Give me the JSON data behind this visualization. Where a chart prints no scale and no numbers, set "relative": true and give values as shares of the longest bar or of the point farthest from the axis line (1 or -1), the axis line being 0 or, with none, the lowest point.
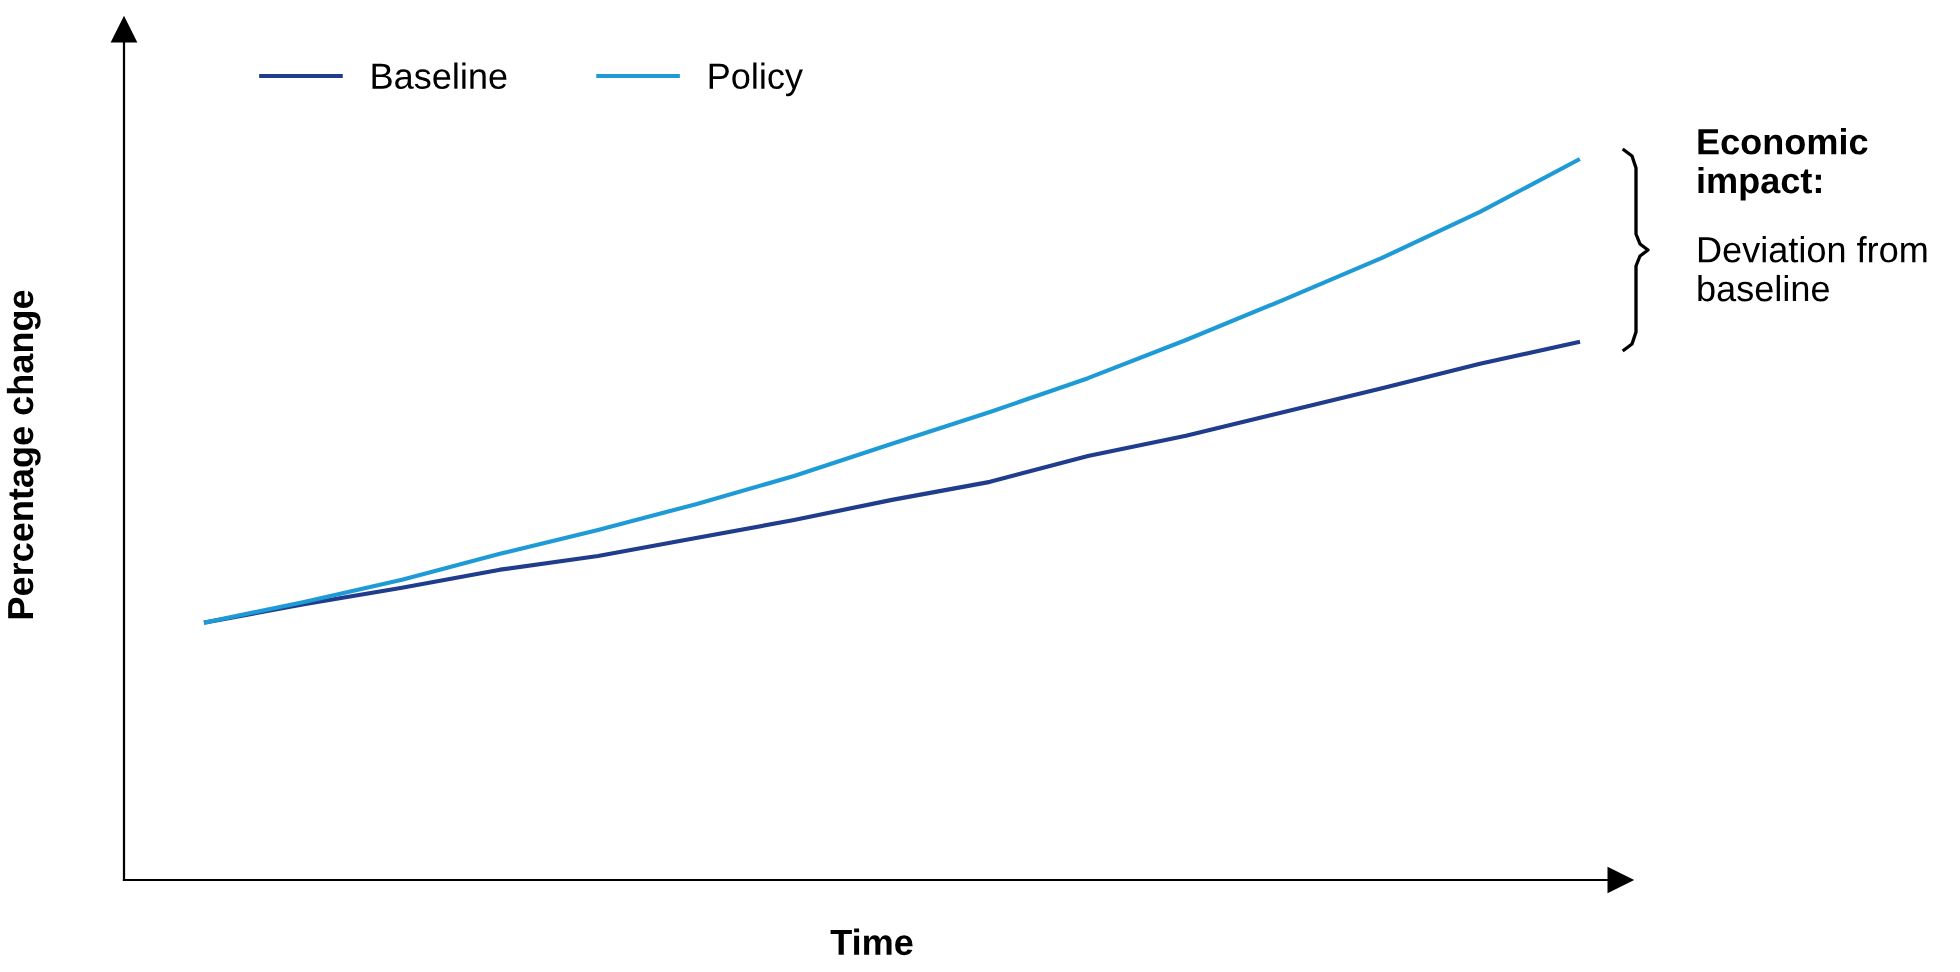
{
  "chart_data": {
    "type": "line",
    "relative": true,
    "xlabel": "Time",
    "ylabel": "Percentage change",
    "legend": "top left",
    "grid": false,
    "marker": "none",
    "line_style": "solid",
    "categories": [
      null,
      null,
      null,
      null,
      null,
      null,
      null,
      null,
      null,
      null,
      null,
      null,
      null,
      null,
      null
    ],
    "series": [
      {
        "name": "Baseline",
        "color": "#1f3d8c",
        "values": [
          0.358,
          0.383,
          0.406,
          0.431,
          0.45,
          0.475,
          0.5,
          0.528,
          0.553,
          0.589,
          0.617,
          0.65,
          0.683,
          0.717,
          0.747
        ]
      },
      {
        "name": "Policy",
        "color": "#1e9ad6",
        "values": [
          0.358,
          0.386,
          0.417,
          0.453,
          0.486,
          0.522,
          0.561,
          0.606,
          0.65,
          0.697,
          0.75,
          0.806,
          0.864,
          0.928,
          1.0
        ]
      }
    ],
    "annotations": [
      "Economic impact:",
      "Deviation from baseline"
    ]
  }
}
